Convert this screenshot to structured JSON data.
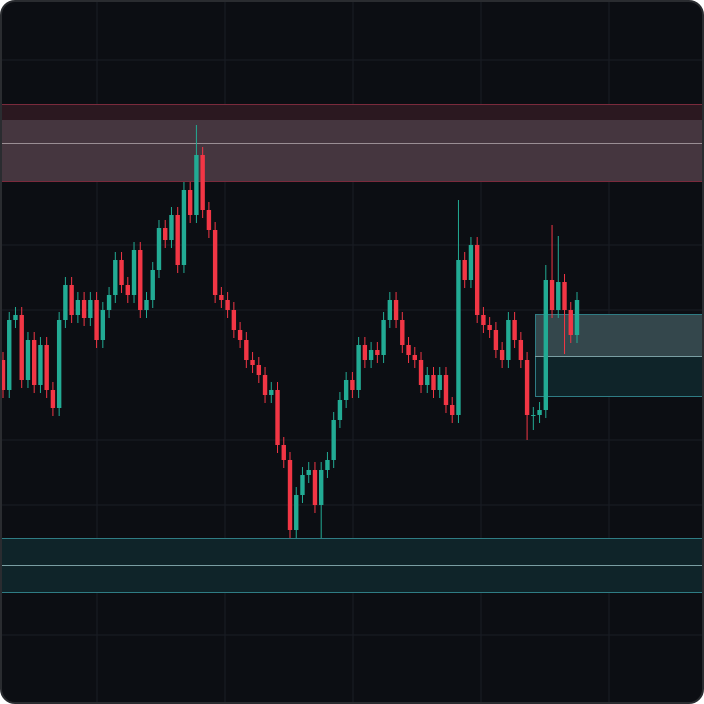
{
  "chart_data": {
    "type": "candlestick",
    "ylim": [
      0,
      704
    ],
    "up_color": "#22ab94",
    "down_color": "#f23645",
    "open": [
      344,
      314,
      384,
      389,
      324,
      364,
      319,
      359,
      314,
      296,
      384,
      419,
      389,
      404,
      386,
      404,
      364,
      394,
      409,
      444,
      419,
      409,
      454,
      394,
      404,
      434,
      476,
      464,
      489,
      439,
      514,
      489,
      549,
      494,
      474,
      409,
      404,
      394,
      374,
      364,
      344,
      339,
      329,
      309,
      314,
      259,
      244,
      174,
      209,
      229,
      234,
      199,
      234,
      244,
      284,
      304,
      324,
      314,
      359,
      344,
      354,
      349,
      384,
      404,
      384,
      359,
      349,
      344,
      319,
      329,
      314,
      329,
      299,
      289,
      444,
      424,
      459,
      389,
      379,
      374,
      354,
      344,
      384,
      364,
      344,
      289,
      289,
      294,
      424,
      394,
      422,
      394,
      369
    ],
    "high": [
      352,
      392,
      397,
      397,
      372,
      372,
      367,
      367,
      322,
      392,
      427,
      427,
      412,
      412,
      412,
      412,
      402,
      417,
      452,
      452,
      427,
      462,
      462,
      412,
      442,
      484,
      484,
      497,
      497,
      522,
      522,
      579,
      557,
      502,
      482,
      417,
      412,
      402,
      382,
      372,
      352,
      347,
      337,
      322,
      322,
      267,
      252,
      217,
      237,
      242,
      242,
      242,
      252,
      292,
      312,
      332,
      332,
      367,
      367,
      362,
      362,
      392,
      412,
      412,
      392,
      367,
      357,
      352,
      337,
      337,
      337,
      337,
      307,
      504,
      452,
      467,
      467,
      397,
      387,
      382,
      362,
      392,
      392,
      372,
      352,
      297,
      302,
      439,
      479,
      468,
      430,
      402,
      412
    ],
    "low": [
      306,
      306,
      376,
      316,
      316,
      311,
      311,
      306,
      288,
      288,
      376,
      381,
      381,
      378,
      378,
      356,
      356,
      386,
      401,
      411,
      401,
      401,
      386,
      386,
      396,
      426,
      456,
      456,
      431,
      431,
      481,
      481,
      486,
      466,
      401,
      396,
      386,
      366,
      356,
      336,
      331,
      321,
      301,
      301,
      251,
      236,
      166,
      166,
      201,
      221,
      191,
      166,
      226,
      236,
      276,
      296,
      306,
      306,
      336,
      336,
      341,
      341,
      376,
      376,
      351,
      341,
      336,
      311,
      311,
      306,
      306,
      291,
      281,
      281,
      416,
      416,
      381,
      371,
      366,
      346,
      336,
      336,
      356,
      336,
      264,
      274,
      281,
      286,
      386,
      386,
      350,
      361,
      361
    ],
    "close": [
      314,
      384,
      389,
      324,
      364,
      319,
      359,
      314,
      296,
      384,
      419,
      389,
      404,
      386,
      404,
      364,
      394,
      409,
      444,
      419,
      409,
      454,
      394,
      404,
      434,
      476,
      464,
      489,
      439,
      514,
      489,
      549,
      494,
      474,
      409,
      404,
      394,
      374,
      364,
      344,
      339,
      329,
      309,
      314,
      259,
      244,
      174,
      209,
      229,
      234,
      199,
      234,
      244,
      284,
      304,
      324,
      314,
      359,
      344,
      354,
      349,
      384,
      404,
      384,
      359,
      349,
      344,
      319,
      329,
      314,
      329,
      299,
      289,
      444,
      424,
      459,
      389,
      379,
      374,
      354,
      344,
      384,
      364,
      344,
      289,
      289,
      294,
      424,
      394,
      422,
      394,
      369,
      404
    ]
  }
}
